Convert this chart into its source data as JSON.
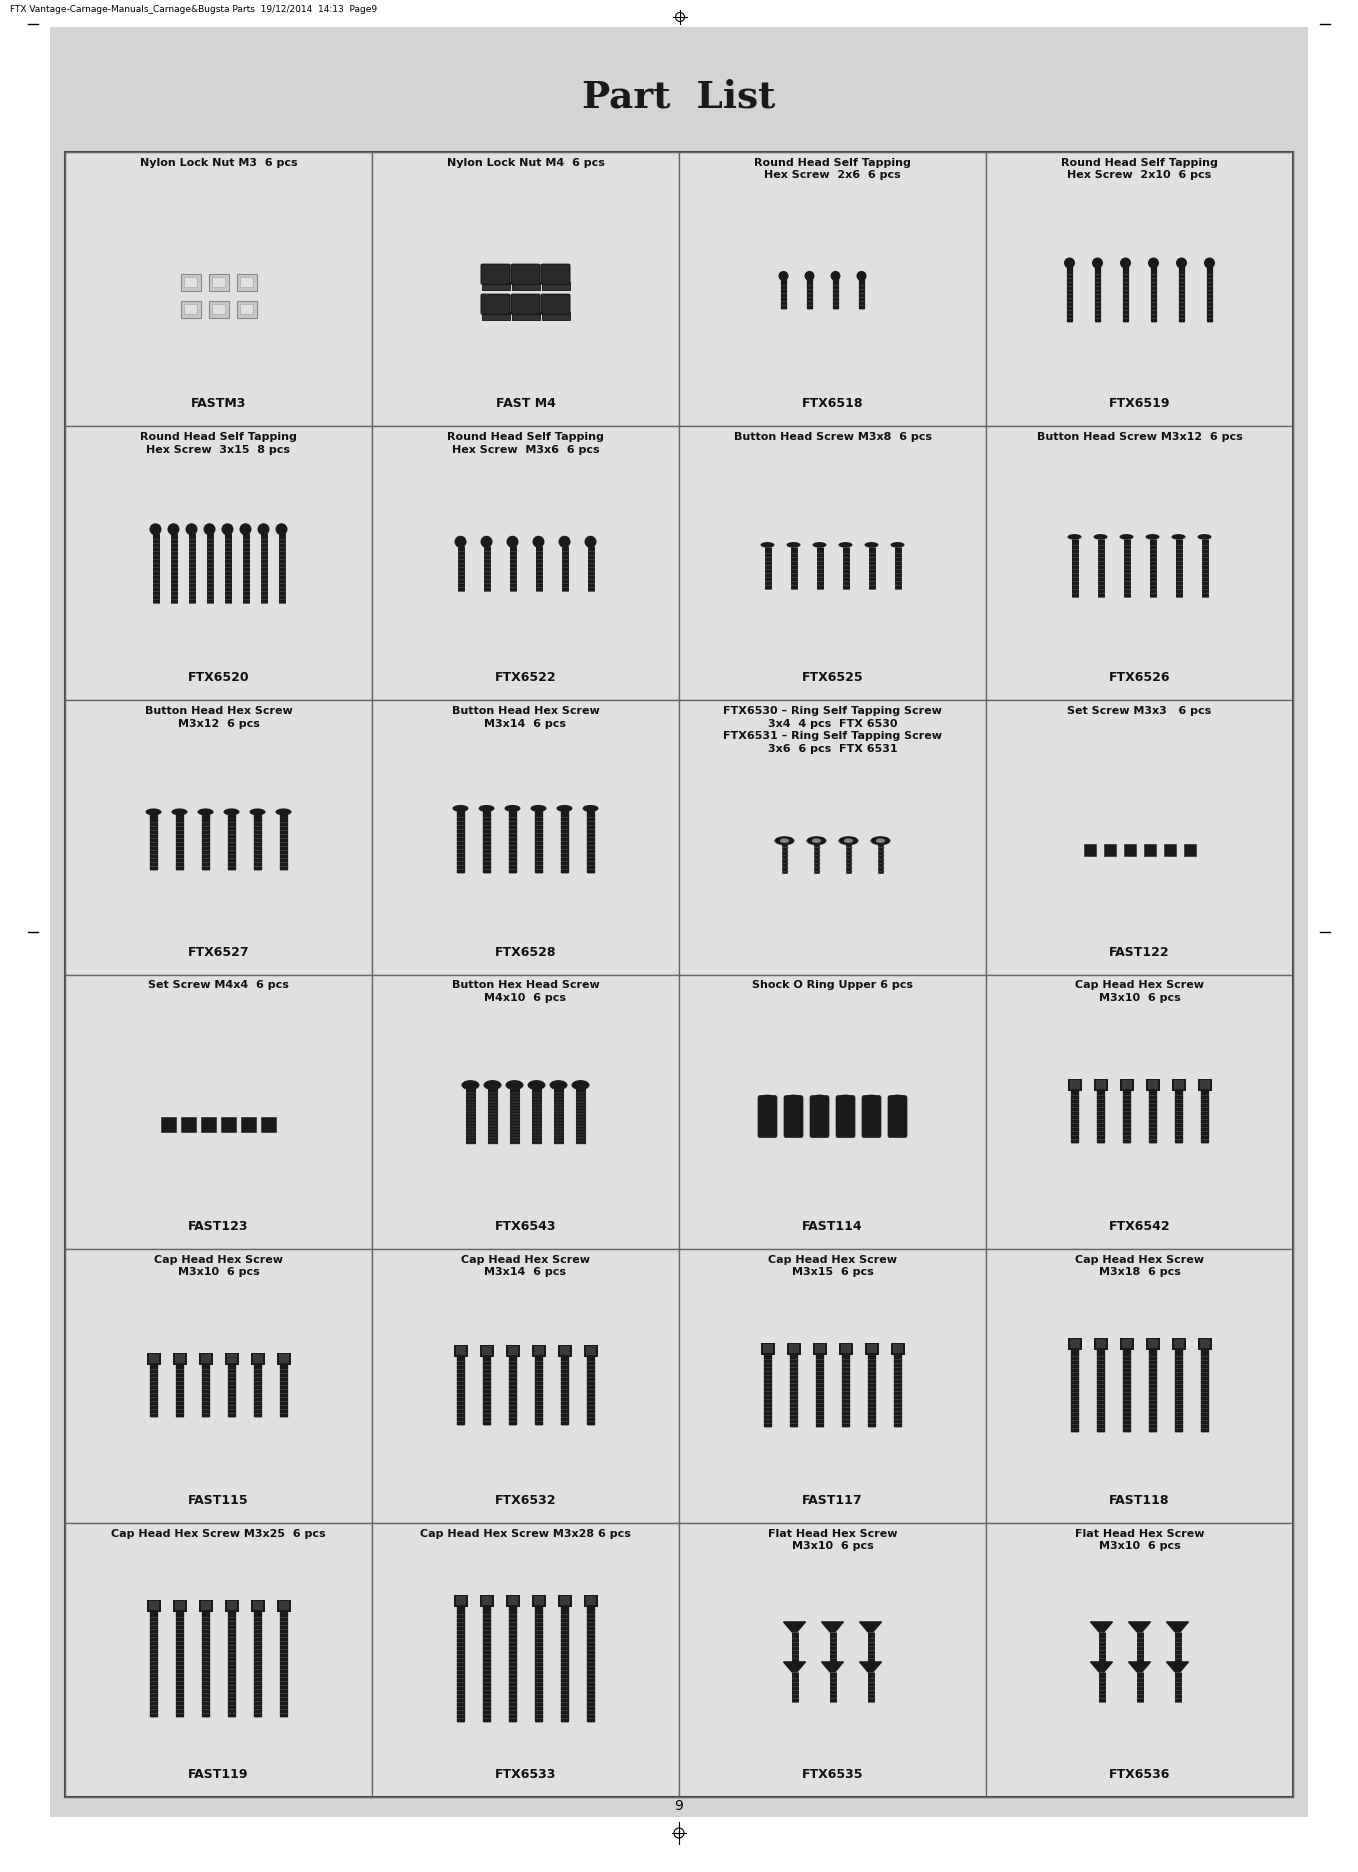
{
  "title": "Part  List",
  "page_number": "9",
  "header_text": "FTX Vantage-Carnage-Manuals_Carnage&Bugsta Parts  19/12/2014  14:13  Page9",
  "background_color": "#d4d4d4",
  "cell_bg": "#e2e2e2",
  "grid_rows": 6,
  "grid_cols": 4,
  "cells": [
    {
      "row": 0,
      "col": 0,
      "label": "Nylon Lock Nut M3  6 pcs",
      "part_id": "FASTM3",
      "type": "nylon_nut_m3"
    },
    {
      "row": 0,
      "col": 1,
      "label": "Nylon Lock Nut M4  6 pcs",
      "part_id": "FAST M4",
      "type": "nylon_nut_m4"
    },
    {
      "row": 0,
      "col": 2,
      "label": "Round Head Self Tapping\nHex Screw  2x6  6 pcs",
      "part_id": "FTX6518",
      "type": "round_head_2x6"
    },
    {
      "row": 0,
      "col": 3,
      "label": "Round Head Self Tapping\nHex Screw  2x10  6 pcs",
      "part_id": "FTX6519",
      "type": "round_head_2x10"
    },
    {
      "row": 1,
      "col": 0,
      "label": "Round Head Self Tapping\nHex Screw  3x15  8 pcs",
      "part_id": "FTX6520",
      "type": "round_head_3x15"
    },
    {
      "row": 1,
      "col": 1,
      "label": "Round Head Self Tapping\nHex Screw  M3x6  6 pcs",
      "part_id": "FTX6522",
      "type": "round_head_m3x6"
    },
    {
      "row": 1,
      "col": 2,
      "label": "Button Head Screw M3x8  6 pcs",
      "part_id": "FTX6525",
      "type": "button_head_m3x8"
    },
    {
      "row": 1,
      "col": 3,
      "label": "Button Head Screw M3x12  6 pcs",
      "part_id": "FTX6526",
      "type": "button_head_m3x12"
    },
    {
      "row": 2,
      "col": 0,
      "label": "Button Head Hex Screw\nM3x12  6 pcs",
      "part_id": "FTX6527",
      "type": "button_hex_m3x12"
    },
    {
      "row": 2,
      "col": 1,
      "label": "Button Head Hex Screw\nM3x14  6 pcs",
      "part_id": "FTX6528",
      "type": "button_hex_m3x14"
    },
    {
      "row": 2,
      "col": 2,
      "label": "FTX6530 – Ring Self Tapping Screw\n3x4  4 pcs  FTX 6530\nFTX6531 – Ring Self Tapping Screw\n3x6  6 pcs  FTX 6531",
      "part_id": "",
      "type": "ring_screw"
    },
    {
      "row": 2,
      "col": 3,
      "label": "Set Screw M3x3   6 pcs",
      "part_id": "FAST122",
      "type": "set_screw_m3x3"
    },
    {
      "row": 3,
      "col": 0,
      "label": "Set Screw M4x4  6 pcs",
      "part_id": "FAST123",
      "type": "set_screw_m4x4"
    },
    {
      "row": 3,
      "col": 1,
      "label": "Button Hex Head Screw\nM4x10  6 pcs",
      "part_id": "FTX6543",
      "type": "button_hex_m4x10"
    },
    {
      "row": 3,
      "col": 2,
      "label": "Shock O Ring Upper 6 pcs",
      "part_id": "FAST114",
      "type": "shock_oring"
    },
    {
      "row": 3,
      "col": 3,
      "label": "Cap Head Hex Screw\nM3x10  6 pcs",
      "part_id": "FTX6542",
      "type": "cap_head_m3x10a"
    },
    {
      "row": 4,
      "col": 0,
      "label": "Cap Head Hex Screw\nM3x10  6 pcs",
      "part_id": "FAST115",
      "type": "cap_head_m3x10b"
    },
    {
      "row": 4,
      "col": 1,
      "label": "Cap Head Hex Screw\nM3x14  6 pcs",
      "part_id": "FTX6532",
      "type": "cap_head_m3x14"
    },
    {
      "row": 4,
      "col": 2,
      "label": "Cap Head Hex Screw\nM3x15  6 pcs",
      "part_id": "FAST117",
      "type": "cap_head_m3x15"
    },
    {
      "row": 4,
      "col": 3,
      "label": "Cap Head Hex Screw\nM3x18  6 pcs",
      "part_id": "FAST118",
      "type": "cap_head_m3x18"
    },
    {
      "row": 5,
      "col": 0,
      "label": "Cap Head Hex Screw M3x25  6 pcs",
      "part_id": "FAST119",
      "type": "cap_head_m3x25"
    },
    {
      "row": 5,
      "col": 1,
      "label": "Cap Head Hex Screw M3x28 6 pcs",
      "part_id": "FTX6533",
      "type": "cap_head_m3x28"
    },
    {
      "row": 5,
      "col": 2,
      "label": "Flat Head Hex Screw\nM3x10  6 pcs",
      "part_id": "FTX6535",
      "type": "flat_head_m3x10a"
    },
    {
      "row": 5,
      "col": 3,
      "label": "Flat Head Hex Screw\nM3x10  6 pcs",
      "part_id": "FTX6536",
      "type": "flat_head_m3x10b"
    }
  ]
}
